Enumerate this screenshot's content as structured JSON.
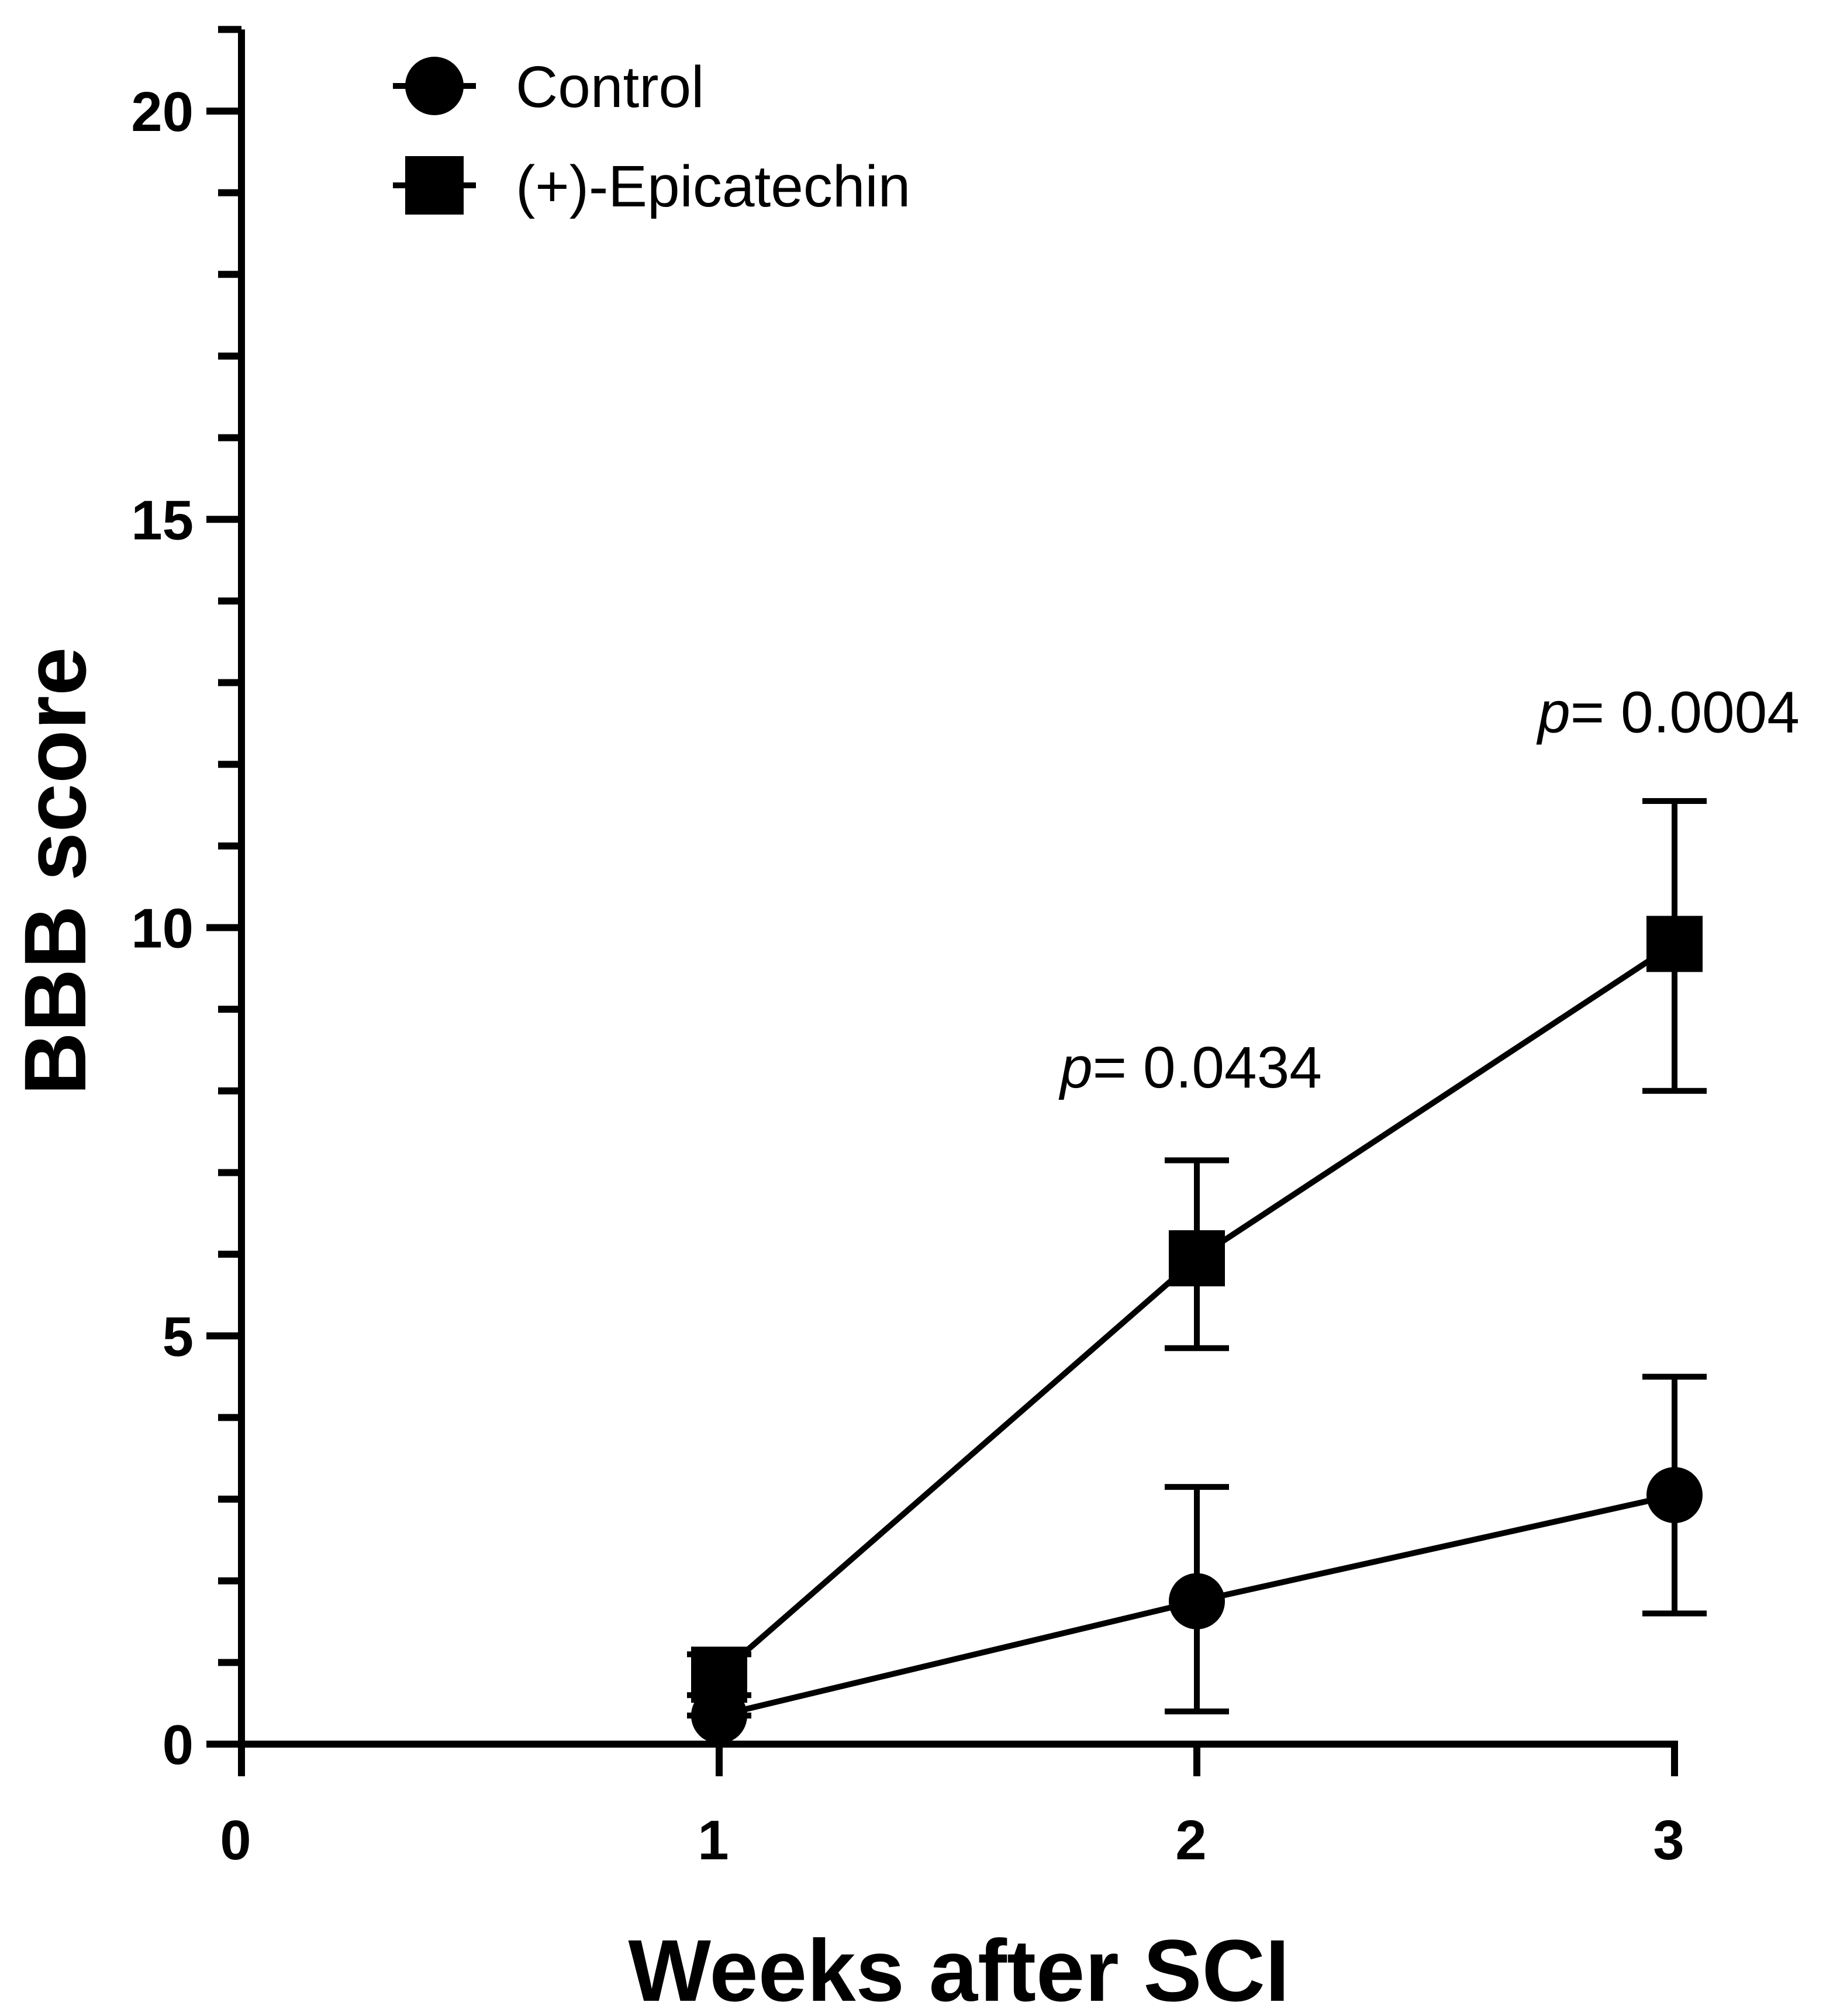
{
  "chart_data": {
    "type": "line",
    "title": "",
    "xlabel": "Weeks after SCI",
    "ylabel": "BBB score",
    "xlim": [
      0,
      3
    ],
    "ylim": [
      0,
      21
    ],
    "x_ticks": [
      0,
      1,
      2,
      3
    ],
    "y_major_ticks": [
      0,
      5,
      10,
      15,
      20
    ],
    "y_minor_ticks": [
      1,
      2,
      3,
      4,
      6,
      7,
      8,
      9,
      11,
      12,
      13,
      14,
      16,
      17,
      18,
      19,
      21
    ],
    "x_tick_labels": [
      "0",
      "1",
      "2",
      "3"
    ],
    "y_tick_labels": [
      "0",
      "5",
      "10",
      "15",
      "20"
    ],
    "grid": false,
    "legend_position": "top-left",
    "series": [
      {
        "name": "Control",
        "marker": "circle",
        "x": [
          1,
          2,
          3
        ],
        "y": [
          0.35,
          1.75,
          3.05
        ],
        "err_low": [
          0.35,
          0.4,
          1.6
        ],
        "err_high": [
          0.35,
          3.15,
          4.5
        ]
      },
      {
        "name": "(+)-Epicatechin",
        "marker": "square",
        "x": [
          1,
          2,
          3
        ],
        "y": [
          0.85,
          5.95,
          9.8
        ],
        "err_low": [
          0.6,
          4.85,
          8.0
        ],
        "err_high": [
          1.1,
          7.15,
          11.55
        ]
      }
    ],
    "annotations": [
      {
        "x": 2,
        "y": 8.3,
        "prefix": "p",
        "text": "= 0.0434"
      },
      {
        "x": 3,
        "y": 12.65,
        "prefix": "p",
        "text": "= 0.0004"
      }
    ]
  }
}
